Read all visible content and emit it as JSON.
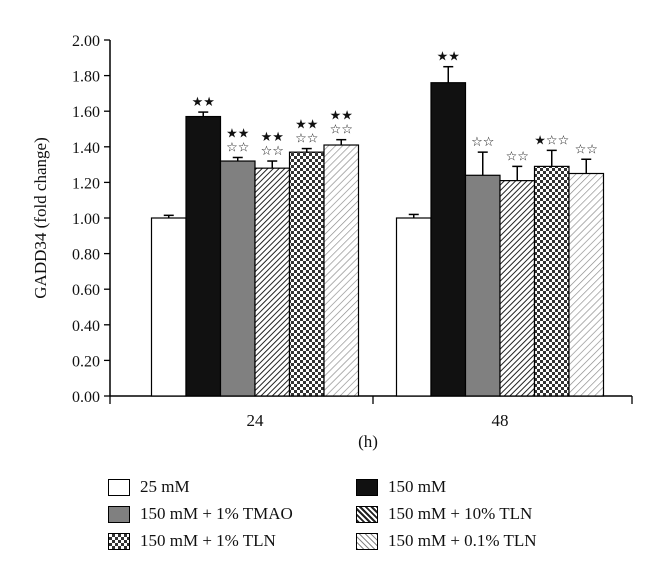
{
  "chart_data": {
    "type": "bar",
    "ylabel": "GADD34 (fold change)",
    "xlabel": "(h)",
    "ylim": [
      0,
      2
    ],
    "yticks": [
      "0.00",
      "0.20",
      "0.40",
      "0.60",
      "0.80",
      "1.00",
      "1.20",
      "1.40",
      "1.60",
      "1.80",
      "2.00"
    ],
    "categories": [
      "24",
      "48"
    ],
    "series": [
      {
        "name": "25 mM",
        "values": [
          1.0,
          1.0
        ],
        "errors": [
          0.015,
          0.02
        ],
        "annotations": [
          "",
          ""
        ],
        "fill": "white"
      },
      {
        "name": "150 mM",
        "values": [
          1.57,
          1.76
        ],
        "errors": [
          0.025,
          0.09
        ],
        "annotations": [
          "★★",
          "★★"
        ],
        "fill": "black"
      },
      {
        "name": "150 mM + 1% TMAO",
        "values": [
          1.32,
          1.24
        ],
        "errors": [
          0.02,
          0.13
        ],
        "annotations": [
          "★★\n☆☆",
          "☆☆"
        ],
        "fill": "gray"
      },
      {
        "name": "150 mM + 10% TLN",
        "values": [
          1.28,
          1.21
        ],
        "errors": [
          0.04,
          0.08
        ],
        "annotations": [
          "★★\n☆☆",
          "☆☆"
        ],
        "fill": "diag-dense"
      },
      {
        "name": "150 mM + 1% TLN",
        "values": [
          1.37,
          1.29
        ],
        "errors": [
          0.02,
          0.09
        ],
        "annotations": [
          "★★\n☆☆",
          "★☆☆"
        ],
        "fill": "checker"
      },
      {
        "name": "150 mM + 0.1% TLN",
        "values": [
          1.41,
          1.25
        ],
        "errors": [
          0.03,
          0.08
        ],
        "annotations": [
          "★★\n☆☆",
          "☆☆"
        ],
        "fill": "diag-light"
      }
    ],
    "legend_position": "bottom",
    "grid": false
  },
  "colors": {
    "bar_outline": "#000000",
    "gray_fill": "#808080",
    "axis": "#000000"
  }
}
